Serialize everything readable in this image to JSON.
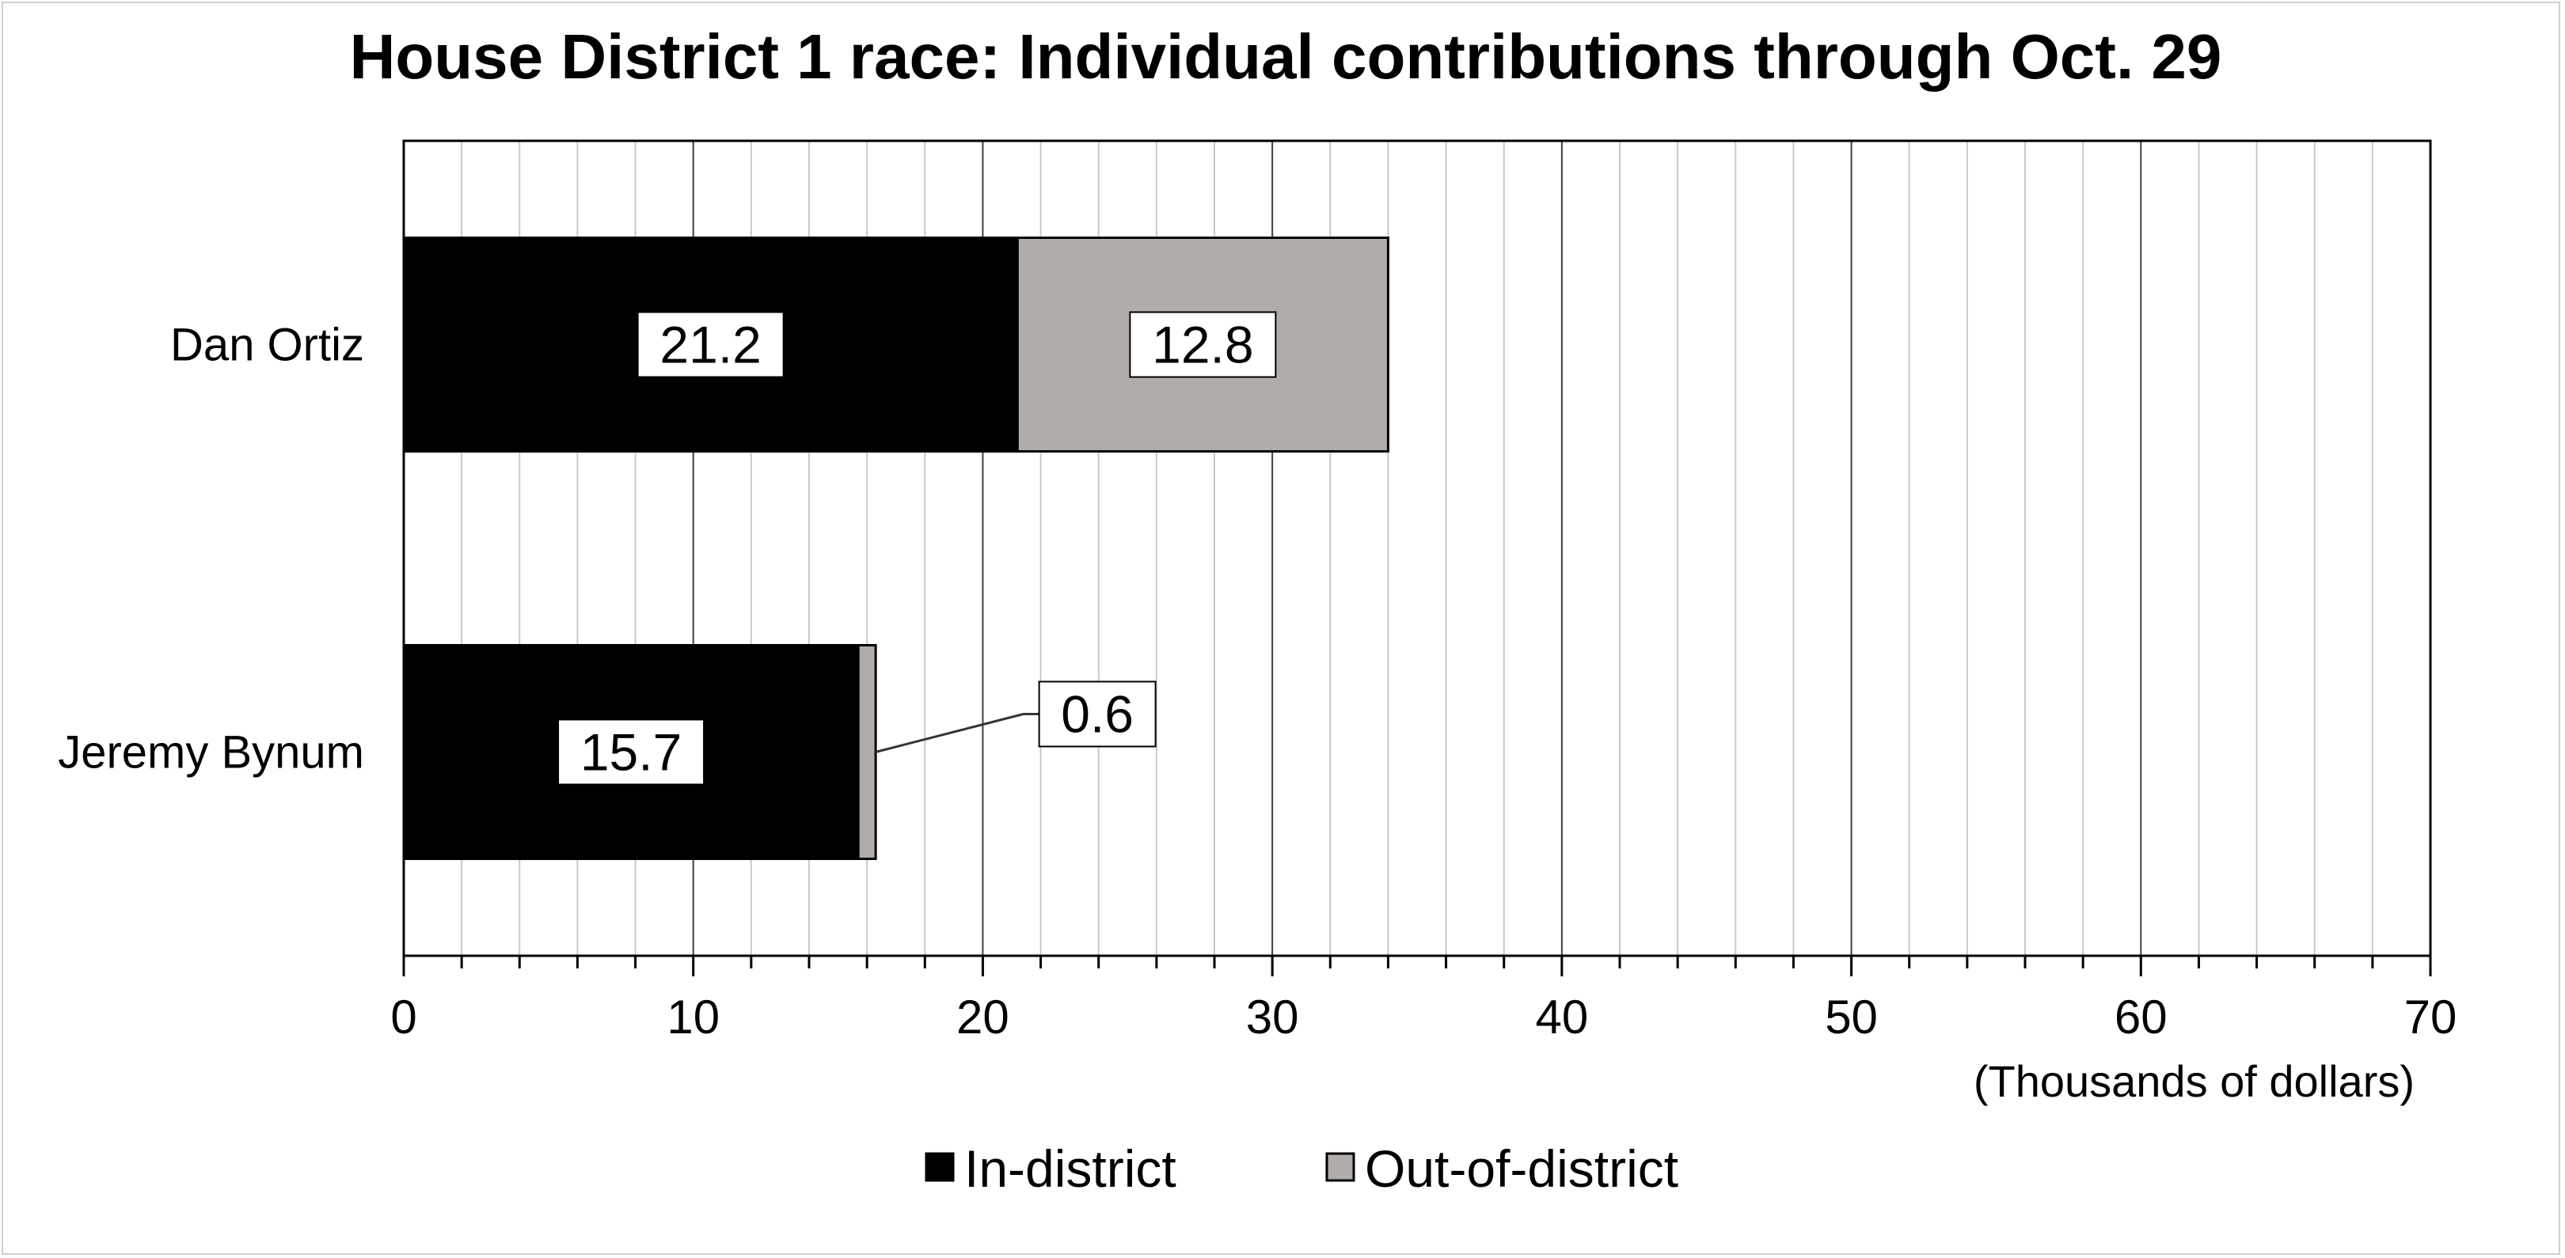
{
  "chart_data": {
    "type": "bar",
    "orientation": "horizontal",
    "stacked": true,
    "title": "House District 1 race: Individual contributions through Oct. 29",
    "categories": [
      "Dan Ortiz",
      "Jeremy Bynum"
    ],
    "series": [
      {
        "name": "In-district",
        "values": [
          21.2,
          15.7
        ],
        "color": "#000000"
      },
      {
        "name": "Out-of-district",
        "values": [
          12.8,
          0.6
        ],
        "color": "#b0acaa"
      }
    ],
    "data_labels": [
      [
        "21.2",
        "15.7"
      ],
      [
        "12.8",
        "0.6"
      ]
    ],
    "xlabel": "(Thousands of dollars)",
    "ylabel": "",
    "xlim": [
      0,
      70
    ],
    "x_ticks": [
      0,
      10,
      20,
      30,
      40,
      50,
      60,
      70
    ],
    "x_tick_labels": [
      "0",
      "10",
      "20",
      "30",
      "40",
      "50",
      "60",
      "70"
    ],
    "minor_tick_step": 2,
    "grid": true,
    "legend_position": "bottom-center"
  }
}
